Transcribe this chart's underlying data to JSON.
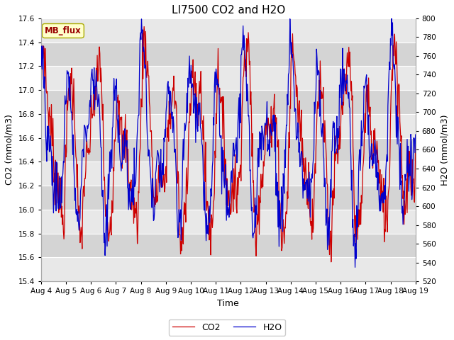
{
  "title": "LI7500 CO2 and H2O",
  "xlabel": "Time",
  "ylabel_left": "CO2 (mmol/m3)",
  "ylabel_right": "H2O (mmol/m3)",
  "co2_ylim": [
    15.4,
    17.6
  ],
  "h2o_ylim": [
    520,
    800
  ],
  "co2_yticks": [
    15.4,
    15.6,
    15.8,
    16.0,
    16.2,
    16.4,
    16.6,
    16.8,
    17.0,
    17.2,
    17.4,
    17.6
  ],
  "h2o_yticks": [
    520,
    540,
    560,
    580,
    600,
    620,
    640,
    660,
    680,
    700,
    720,
    740,
    760,
    780,
    800
  ],
  "xtick_labels": [
    "Aug 4",
    "Aug 5",
    "Aug 6",
    "Aug 7",
    "Aug 8",
    "Aug 9",
    "Aug 9",
    "Aug 10",
    "Aug 11",
    "Aug 12",
    "Aug 13",
    "Aug 14",
    "Aug 15",
    "Aug 16",
    "Aug 17",
    "Aug 18",
    "Aug 19"
  ],
  "co2_color": "#cc0000",
  "h2o_color": "#0000cc",
  "line_width": 0.9,
  "plot_bg_color": "#e8e8e8",
  "fig_bg_color": "#ffffff",
  "band_light": "#dcdcdc",
  "band_dark": "#e8e8e8",
  "annotation_text": "MB_flux",
  "annotation_bg": "#ffffcc",
  "annotation_border": "#aaaa00",
  "annotation_text_color": "#990000",
  "legend_co2": "CO2",
  "legend_h2o": "H2O"
}
